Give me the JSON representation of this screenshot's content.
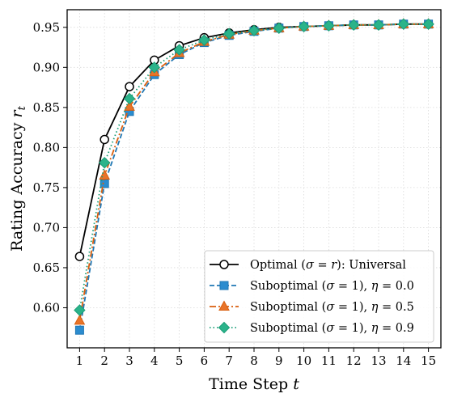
{
  "chart_data": {
    "type": "line",
    "xlabel": "Time Step t",
    "ylabel": "Rating Accuracy r_t",
    "xlim": [
      0.5,
      15.5
    ],
    "ylim": [
      0.55,
      0.972
    ],
    "x": [
      1,
      2,
      3,
      4,
      5,
      6,
      7,
      8,
      9,
      10,
      11,
      12,
      13,
      14,
      15
    ],
    "x_tick_labels": [
      "1",
      "2",
      "3",
      "4",
      "5",
      "6",
      "7",
      "8",
      "9",
      "10",
      "11",
      "12",
      "13",
      "14",
      "15"
    ],
    "y_ticks": [
      0.6,
      0.65,
      0.7,
      0.75,
      0.8,
      0.85,
      0.9,
      0.95
    ],
    "y_tick_labels": [
      "0.60",
      "0.65",
      "0.70",
      "0.75",
      "0.80",
      "0.85",
      "0.90",
      "0.95"
    ],
    "grid": true,
    "legend_position": "bottom-right",
    "series": [
      {
        "name": "Optimal (σ = r): Universal",
        "legend_parts": [
          {
            "text": "Optimal (",
            "italic": false
          },
          {
            "text": "σ",
            "italic": true
          },
          {
            "text": " = ",
            "italic": false
          },
          {
            "text": "r",
            "italic": true
          },
          {
            "text": "): Universal",
            "italic": false
          }
        ],
        "color": "#000000",
        "line": "solid",
        "marker": "circle",
        "marker_fill": "#ffffff",
        "values": [
          0.664,
          0.81,
          0.876,
          0.909,
          0.927,
          0.937,
          0.943,
          0.947,
          0.95,
          0.951,
          0.952,
          0.953,
          0.953,
          0.954,
          0.954
        ]
      },
      {
        "name": "Suboptimal (σ = 1), η = 0.0",
        "legend_parts": [
          {
            "text": "Suboptimal (",
            "italic": false
          },
          {
            "text": "σ",
            "italic": true
          },
          {
            "text": " = 1), ",
            "italic": false
          },
          {
            "text": "η",
            "italic": true
          },
          {
            "text": " = 0.0",
            "italic": false
          }
        ],
        "color": "#1f77b4",
        "line": "dashed",
        "marker": "square",
        "marker_fill": "#2b8ccf",
        "values": [
          0.572,
          0.755,
          0.845,
          0.891,
          0.916,
          0.931,
          0.94,
          0.945,
          0.949,
          0.951,
          0.952,
          0.953,
          0.953,
          0.954,
          0.954
        ]
      },
      {
        "name": "Suboptimal (σ = 1), η = 0.5",
        "legend_parts": [
          {
            "text": "Suboptimal (",
            "italic": false
          },
          {
            "text": "σ",
            "italic": true
          },
          {
            "text": " = 1), ",
            "italic": false
          },
          {
            "text": "η",
            "italic": true
          },
          {
            "text": " = 0.5",
            "italic": false
          }
        ],
        "color": "#d95f0e",
        "line": "dashdot",
        "marker": "triangle",
        "marker_fill": "#e8742a",
        "values": [
          0.584,
          0.765,
          0.851,
          0.894,
          0.918,
          0.932,
          0.941,
          0.946,
          0.949,
          0.951,
          0.952,
          0.953,
          0.953,
          0.954,
          0.954
        ]
      },
      {
        "name": "Suboptimal (σ = 1), η = 0.9",
        "legend_parts": [
          {
            "text": "Suboptimal (",
            "italic": false
          },
          {
            "text": "σ",
            "italic": true
          },
          {
            "text": " = 1), ",
            "italic": false
          },
          {
            "text": "η",
            "italic": true
          },
          {
            "text": " = 0.9",
            "italic": false
          }
        ],
        "color": "#1a9e77",
        "line": "dotted",
        "marker": "diamond",
        "marker_fill": "#2bb38a",
        "values": [
          0.597,
          0.781,
          0.861,
          0.9,
          0.922,
          0.934,
          0.942,
          0.946,
          0.949,
          0.951,
          0.952,
          0.953,
          0.953,
          0.954,
          0.954
        ]
      }
    ]
  }
}
